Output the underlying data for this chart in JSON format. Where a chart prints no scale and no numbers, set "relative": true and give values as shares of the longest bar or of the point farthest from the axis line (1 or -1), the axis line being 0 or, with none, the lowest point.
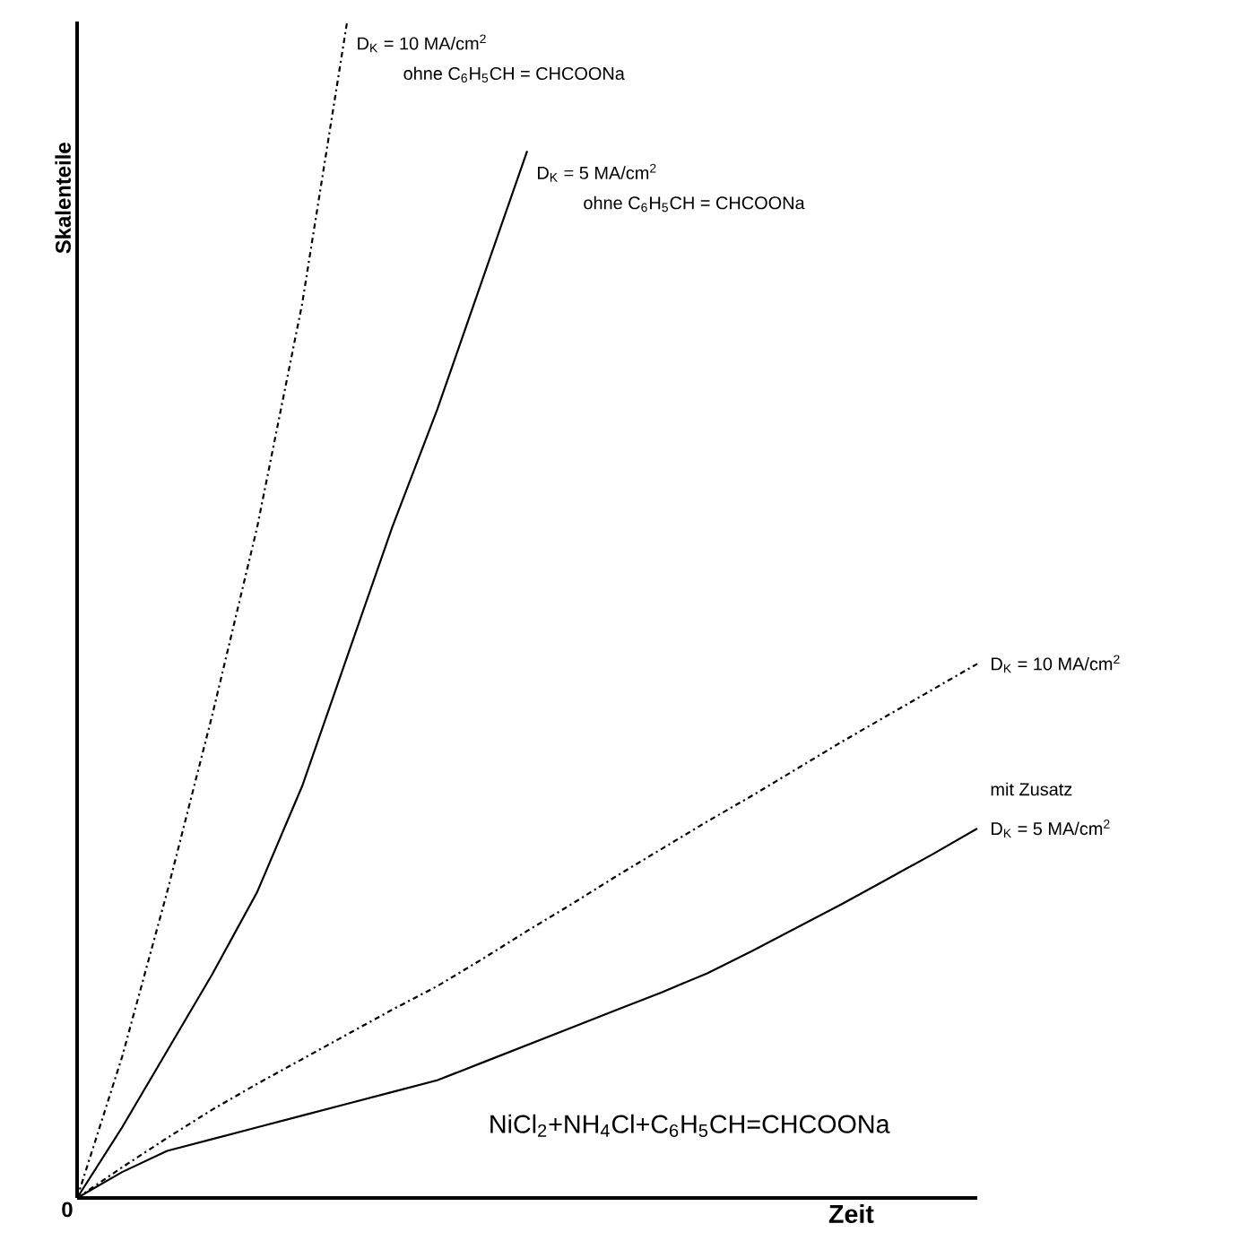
{
  "chart_data": {
    "type": "line",
    "xlabel": "Zeit",
    "ylabel": "Skalenteile",
    "relative": true,
    "color": "#000000",
    "categories": [
      null,
      null,
      null,
      null,
      null,
      null,
      null,
      null,
      null,
      null,
      null,
      null,
      null,
      null,
      null,
      null,
      null,
      null,
      null,
      null,
      null
    ],
    "series": [
      {
        "name": "D$_{K}$ = 10 MA/cm$^{2}$",
        "line_style": "dashdot",
        "values": [
          0,
          0.12,
          0.26,
          0.41,
          0.57,
          0.76,
          1.0,
          null,
          null,
          null,
          null,
          null,
          null,
          null,
          null,
          null,
          null,
          null,
          null,
          null,
          null
        ]
      },
      {
        "name": "D$_{K}$ = 5 MA/cm$^{2}$",
        "line_style": "solid",
        "values": [
          0,
          0.06,
          0.125,
          0.19,
          0.26,
          0.35,
          0.46,
          0.57,
          0.67,
          0.78,
          0.89,
          null,
          null,
          null,
          null,
          null,
          null,
          null,
          null,
          null,
          null
        ]
      },
      {
        "name": "D$_{K}$ = 10 MA/cm$^{2}$",
        "line_style": "dashdot",
        "values": [
          0,
          0.026,
          0.051,
          0.075,
          0.097,
          0.118,
          0.139,
          0.16,
          0.18,
          0.203,
          0.227,
          0.25,
          0.274,
          0.297,
          0.32,
          0.342,
          0.365,
          0.388,
          0.41,
          0.432,
          0.454
        ]
      },
      {
        "name": "D$_{K}$ = 5 MA/cm$^{2}$",
        "line_style": "solid",
        "values": [
          0,
          0.022,
          0.04,
          0.05,
          0.06,
          0.07,
          0.08,
          0.09,
          0.1,
          0.115,
          0.13,
          0.145,
          0.16,
          0.175,
          0.191,
          0.21,
          0.23,
          0.25,
          0.271,
          0.292,
          0.314
        ]
      }
    ],
    "annotations": [
      "ohne C$_{6}$H$_{5}$CH = CHCOONa",
      "ohne C$_{6}$H$_{5}$CH = CHCOONa",
      "mit Zusatz",
      "0",
      "NiCl$_{2}$+NH$_{4}$Cl+C$_{6}$H$_{5}$CH=CHCOONa"
    ]
  }
}
